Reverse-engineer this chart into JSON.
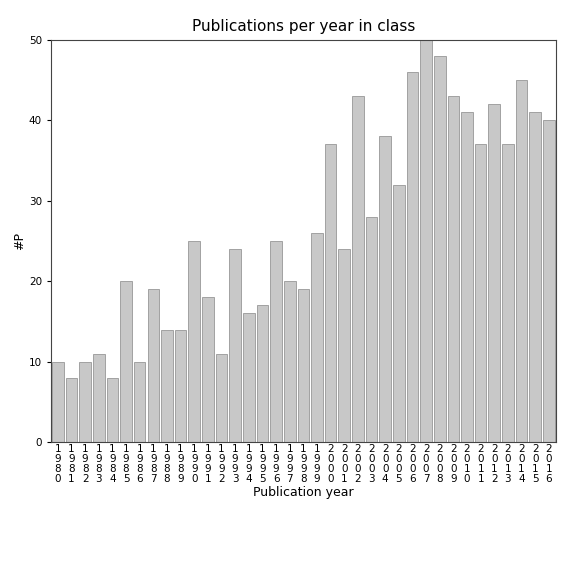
{
  "title": "Publications per year in class",
  "xlabel": "Publication year",
  "ylabel": "#P",
  "years": [
    "1980",
    "1981",
    "1982",
    "1983",
    "1984",
    "1985",
    "1986",
    "1987",
    "1988",
    "1989",
    "1990",
    "1991",
    "1992",
    "1993",
    "1994",
    "1995",
    "1996",
    "1997",
    "1998",
    "1999",
    "2000",
    "2001",
    "2002",
    "2003",
    "2004",
    "2005",
    "2006",
    "2007",
    "2008",
    "2009",
    "2010",
    "2011",
    "2012",
    "2013",
    "2014",
    "2015",
    "2016"
  ],
  "values": [
    10,
    8,
    10,
    11,
    8,
    20,
    10,
    19,
    14,
    14,
    25,
    18,
    11,
    24,
    16,
    17,
    25,
    20,
    19,
    26,
    37,
    24,
    43,
    28,
    38,
    32,
    46,
    50,
    48,
    43,
    41,
    37,
    42,
    37,
    45,
    41,
    40
  ],
  "bar_color": "#c8c8c8",
  "bar_edgecolor": "#888888",
  "ylim": [
    0,
    50
  ],
  "yticks": [
    0,
    10,
    20,
    30,
    40,
    50
  ],
  "bg_color": "#ffffff",
  "title_fontsize": 11,
  "label_fontsize": 9,
  "tick_fontsize": 7.5
}
